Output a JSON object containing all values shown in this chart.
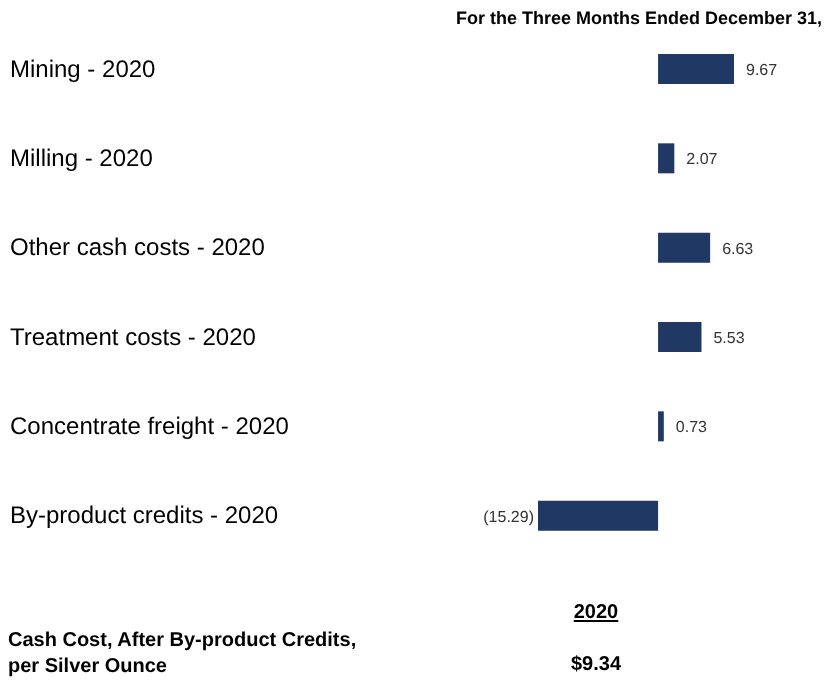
{
  "chart_data": {
    "type": "bar",
    "orientation": "horizontal",
    "title": "For the Three Months Ended December 31,",
    "categories": [
      "Mining  - 2020",
      "Milling  - 2020",
      "Other cash costs  - 2020",
      "Treatment costs  - 2020",
      "Concentrate freight  - 2020",
      "By-product credits  - 2020"
    ],
    "values": [
      9.67,
      2.07,
      6.63,
      5.53,
      0.73,
      -15.29
    ],
    "value_labels": [
      "9.67",
      "2.07",
      "6.63",
      "5.53",
      "0.73",
      "(15.29)"
    ],
    "color": "#1f3864",
    "tick_labels": "y",
    "grid": false,
    "legend": false,
    "annotations": [
      "2020",
      "Cash Cost, After By-product Credits, per Silver Ounce",
      "$9.34"
    ]
  }
}
